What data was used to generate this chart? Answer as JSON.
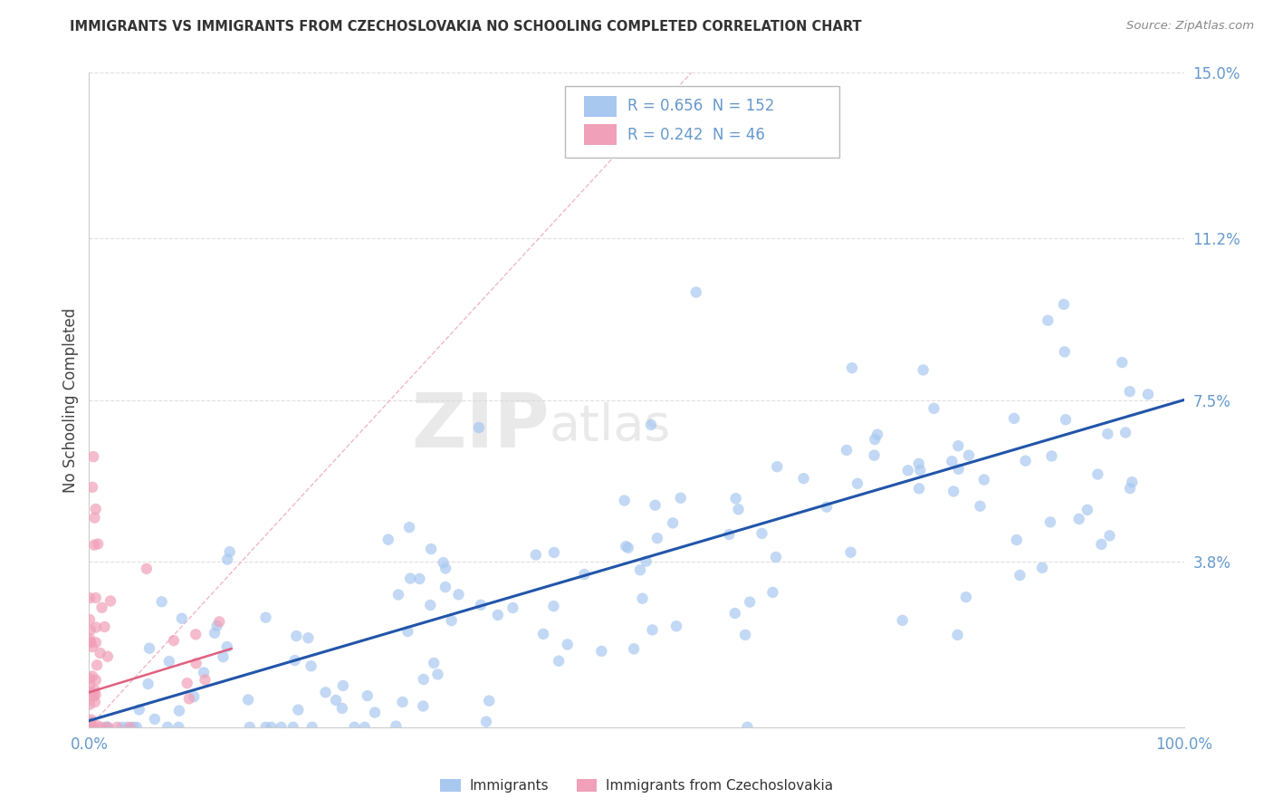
{
  "title": "IMMIGRANTS VS IMMIGRANTS FROM CZECHOSLOVAKIA NO SCHOOLING COMPLETED CORRELATION CHART",
  "source": "Source: ZipAtlas.com",
  "ylabel": "No Schooling Completed",
  "watermark_part1": "ZIP",
  "watermark_part2": "atlas",
  "legend_blue_R": 0.656,
  "legend_blue_N": 152,
  "legend_pink_R": 0.242,
  "legend_pink_N": 46,
  "xlim": [
    0,
    100
  ],
  "ylim": [
    0,
    15
  ],
  "yticks": [
    0,
    3.8,
    7.5,
    11.2,
    15.0
  ],
  "ytick_labels": [
    "",
    "3.8%",
    "7.5%",
    "11.2%",
    "15.0%"
  ],
  "xtick_labels": [
    "0.0%",
    "100.0%"
  ],
  "xticks": [
    0,
    100
  ],
  "blue_scatter_color": "#a8c8f0",
  "pink_scatter_color": "#f0a0b8",
  "blue_line_color": "#2255aa",
  "pink_line_color": "#e06080",
  "diag_line_color": "#f0b0c0",
  "grid_color": "#d8d8d8",
  "title_color": "#333333",
  "ytick_color": "#6699cc",
  "xtick_color": "#6699cc",
  "source_color": "#888888",
  "ylabel_color": "#444444",
  "background_color": "#ffffff"
}
